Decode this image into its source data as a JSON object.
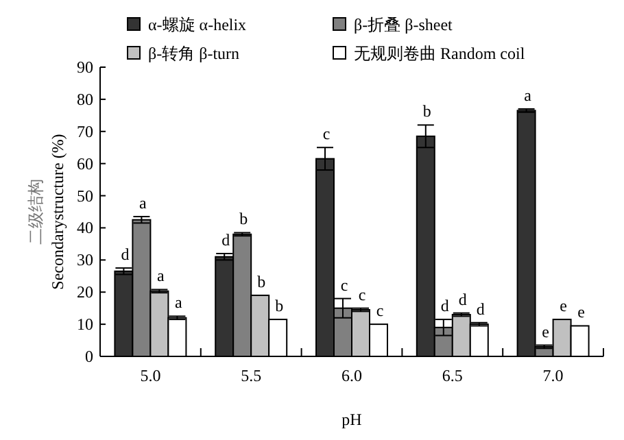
{
  "chart_data": {
    "type": "bar",
    "xlabel": "pH",
    "ylabel": "二级结构\nSecondarystructure (%)",
    "categories": [
      "5.0",
      "5.5",
      "6.0",
      "6.5",
      "7.0"
    ],
    "ylim": [
      0,
      90
    ],
    "yticks": [
      0,
      10,
      20,
      30,
      40,
      50,
      60,
      70,
      80,
      90
    ],
    "grid": false,
    "legend": "top",
    "series": [
      {
        "name": "α-螺旋 α-helix",
        "color": "#333333",
        "values": [
          26.5,
          31,
          61.5,
          68.5,
          76.5
        ],
        "errors": [
          1,
          1,
          3.5,
          3.5,
          0.5
        ],
        "value_labels": [
          "d",
          "d",
          "c",
          "b",
          "a"
        ]
      },
      {
        "name": "β-折叠 β-sheet",
        "color": "#808080",
        "values": [
          42.5,
          38,
          15,
          9,
          3
        ],
        "errors": [
          1,
          0.5,
          3,
          2.5,
          0.5
        ],
        "value_labels": [
          "a",
          "b",
          "c",
          "d",
          "e"
        ]
      },
      {
        "name": "β-转角 β-turn",
        "color": "#c0c0c0",
        "values": [
          20.3,
          19,
          14.5,
          13,
          11.5
        ],
        "errors": [
          0.5,
          null,
          0.5,
          0.5,
          null
        ],
        "value_labels": [
          "a",
          "b",
          "c",
          "d",
          "e"
        ]
      },
      {
        "name": "无规则卷曲 Random coil",
        "color": "#ffffff",
        "values": [
          12,
          11.5,
          10,
          10,
          9.5
        ],
        "errors": [
          0.5,
          null,
          null,
          0.5,
          null
        ],
        "value_labels": [
          "a",
          "b",
          "c",
          "d",
          "e"
        ]
      }
    ]
  }
}
